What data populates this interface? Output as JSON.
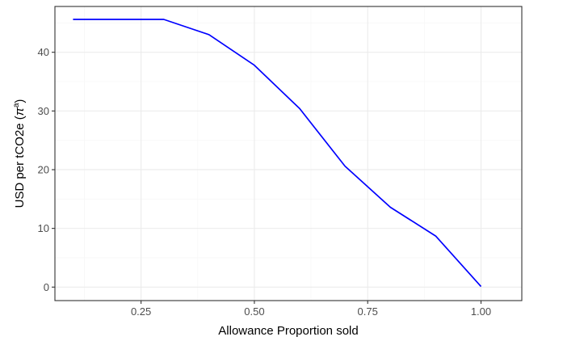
{
  "chart_data": {
    "type": "line",
    "xlabel": "Allowance Proportion sold",
    "ylabel": {
      "prefix": "USD per tCO2e (",
      "symbol": "π",
      "superscript": "a",
      "suffix": ")"
    },
    "xlim": [
      0.06,
      1.09
    ],
    "ylim": [
      -2.3,
      47.8
    ],
    "x_ticks": [
      0.25,
      0.5,
      0.75,
      1.0
    ],
    "x_tick_labels": [
      "0.25",
      "0.50",
      "0.75",
      "1.00"
    ],
    "y_ticks": [
      0,
      10,
      20,
      30,
      40
    ],
    "y_tick_labels": [
      "0",
      "10",
      "20",
      "30",
      "40"
    ],
    "grid": true,
    "legend": "none",
    "series": [
      {
        "color": "#0000ff",
        "x": [
          0.1,
          0.2,
          0.3,
          0.4,
          0.5,
          0.6,
          0.7,
          0.8,
          0.9,
          1.0
        ],
        "y": [
          45.6,
          45.6,
          45.6,
          43.0,
          37.8,
          30.4,
          20.6,
          13.6,
          8.7,
          0.1
        ]
      }
    ],
    "colors": {
      "background": "#ffffff",
      "panel_border": "#333333",
      "grid_major": "#ebebeb",
      "grid_minor": "#f5f5f5"
    }
  }
}
